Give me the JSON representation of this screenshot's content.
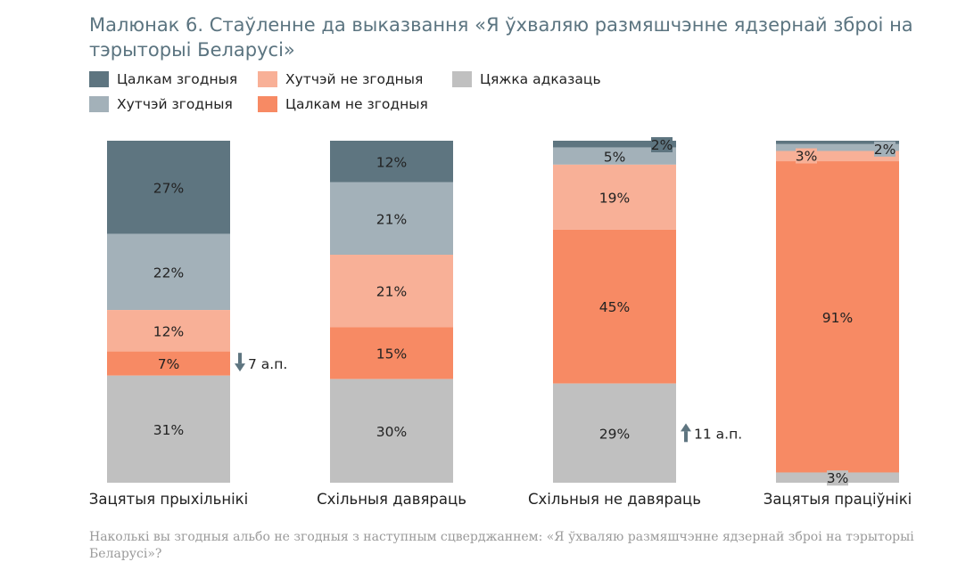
{
  "title": "Малюнак 6. Стаўленне да выказвання «Я ўхваляю размяшчэнне ядзернай зброі на тэрыторыі Беларусі»",
  "footnote": "Наколькі вы згодныя альбо не згодныя з наступным сцверджаннем: «Я ўхваляю размяшчэнне ядзернай зброі на тэрыторыі Беларусі»?",
  "colors": {
    "fully_agree": "#5e7580",
    "rather_agree": "#a3b1b9",
    "rather_disagree": "#f8b097",
    "fully_disagree": "#f78a64",
    "hard_to_say": "#c0c0c0",
    "annotation_arrow": "#5e7580"
  },
  "chart_data": {
    "type": "bar",
    "stacked": true,
    "normalized": true,
    "categories": [
      "Зацятыя прыхільнікі",
      "Схільныя давяраць",
      "Схільныя не давяраць",
      "Зацятыя праціўнікі"
    ],
    "series": [
      {
        "name": "Цалкам згодныя",
        "key": "fully_agree",
        "values": [
          27,
          12,
          2,
          1
        ]
      },
      {
        "name": "Хутчэй згодныя",
        "key": "rather_agree",
        "values": [
          22,
          21,
          5,
          2
        ]
      },
      {
        "name": "Хутчэй не згодныя",
        "key": "rather_disagree",
        "values": [
          12,
          21,
          19,
          3
        ]
      },
      {
        "name": "Цалкам не згодныя",
        "key": "fully_disagree",
        "values": [
          7,
          15,
          45,
          91
        ]
      },
      {
        "name": "Цяжка адказаць",
        "key": "hard_to_say",
        "values": [
          31,
          30,
          29,
          3
        ]
      }
    ],
    "data_labels": [
      [
        "27%",
        "22%",
        "12%",
        "7%",
        "31%"
      ],
      [
        "12%",
        "21%",
        "21%",
        "15%",
        "30%"
      ],
      [
        "2%",
        "5%",
        "19%",
        "45%",
        "29%"
      ],
      [
        "",
        "2%",
        "3%",
        "91%",
        "3%"
      ]
    ],
    "annotations": [
      {
        "category": 0,
        "series": 3,
        "direction": "down",
        "text": "7 а.п."
      },
      {
        "category": 2,
        "series": 4,
        "direction": "up",
        "text": "11 а.п."
      }
    ],
    "legend_placement": "top-left",
    "grid": false
  }
}
